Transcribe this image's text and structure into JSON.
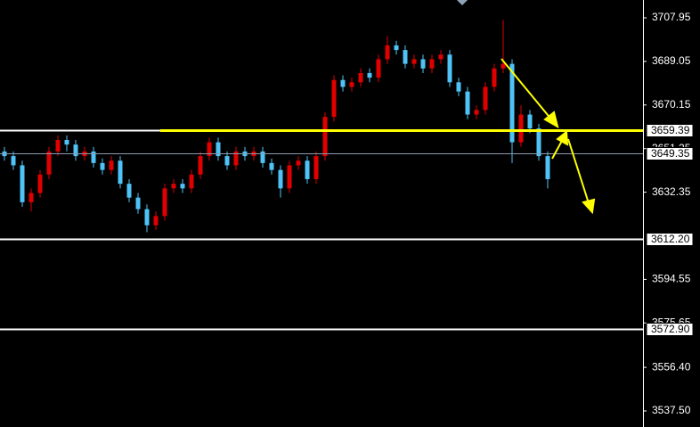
{
  "chart_data": {
    "type": "candlestick",
    "up_color": "#e00000",
    "down_color": "#4fc3f7",
    "ylim": [
      3530.54,
      3715.68
    ],
    "yticks": [
      3707.95,
      3689.05,
      3670.15,
      3651.25,
      3632.35,
      3594.55,
      3575.65,
      {
        "value": 3556.4,
        "label": "3556.40"
      },
      {
        "value": 3537.5,
        "label": "3537.50"
      }
    ],
    "open": [
      3650,
      3648,
      3644,
      3628,
      3632,
      3640,
      3650,
      3655,
      3653,
      3648,
      3650,
      3645,
      3642,
      3646,
      3636,
      3630,
      3625,
      3618,
      3622,
      3634,
      3636,
      3634,
      3640,
      3648,
      3654,
      3648,
      3644,
      3650,
      3648,
      3650,
      3645,
      3642,
      3634,
      3644,
      3646,
      3638,
      3648,
      3665,
      3681,
      3678,
      3680,
      3684,
      3682,
      3690,
      3696,
      3694,
      3688,
      3690,
      3686,
      3690,
      3692,
      3680,
      3676,
      3666,
      3668,
      3678,
      3686,
      3688,
      3654,
      3666,
      3660,
      3648
    ],
    "high": [
      3652,
      3650,
      3646,
      3634,
      3642,
      3652,
      3657,
      3657,
      3655,
      3652,
      3652,
      3647,
      3648,
      3648,
      3638,
      3632,
      3627,
      3624,
      3636,
      3638,
      3638,
      3642,
      3650,
      3656,
      3656,
      3650,
      3652,
      3652,
      3652,
      3652,
      3647,
      3644,
      3646,
      3648,
      3648,
      3650,
      3667,
      3683,
      3683,
      3682,
      3686,
      3686,
      3692,
      3700,
      3698,
      3696,
      3692,
      3692,
      3692,
      3694,
      3694,
      3682,
      3678,
      3670,
      3680,
      3688,
      3707,
      3690,
      3670,
      3668,
      3662,
      3650
    ],
    "low": [
      3646,
      3642,
      3626,
      3624,
      3630,
      3638,
      3648,
      3650,
      3646,
      3646,
      3643,
      3640,
      3640,
      3634,
      3628,
      3623,
      3615,
      3616,
      3620,
      3632,
      3632,
      3632,
      3638,
      3646,
      3646,
      3642,
      3642,
      3646,
      3646,
      3643,
      3640,
      3630,
      3632,
      3642,
      3636,
      3636,
      3646,
      3663,
      3676,
      3676,
      3678,
      3680,
      3680,
      3688,
      3692,
      3686,
      3686,
      3684,
      3684,
      3688,
      3678,
      3674,
      3664,
      3664,
      3666,
      3676,
      3684,
      3645,
      3652,
      3658,
      3646,
      3634
    ],
    "close": [
      3648,
      3644,
      3628,
      3632,
      3640,
      3650,
      3655,
      3653,
      3648,
      3650,
      3645,
      3642,
      3646,
      3636,
      3630,
      3625,
      3618,
      3622,
      3634,
      3636,
      3634,
      3640,
      3648,
      3654,
      3648,
      3644,
      3650,
      3648,
      3650,
      3645,
      3642,
      3634,
      3644,
      3646,
      3638,
      3648,
      3665,
      3681,
      3678,
      3680,
      3684,
      3682,
      3690,
      3696,
      3694,
      3688,
      3690,
      3686,
      3690,
      3692,
      3680,
      3676,
      3666,
      3668,
      3678,
      3686,
      3688,
      3654,
      3666,
      3660,
      3648,
      3638
    ],
    "levels": [
      {
        "value": 3659.39,
        "color": "#ffff00"
      },
      {
        "value": 3649.35,
        "color": "#8a9bb0"
      },
      {
        "value": {
          "value": 3612.2,
          "label": "3612.20"
        },
        "color": "#ffffff"
      },
      {
        "value": {
          "value": 3572.9,
          "label": "3572.90"
        },
        "color": "#ffffff"
      }
    ]
  }
}
